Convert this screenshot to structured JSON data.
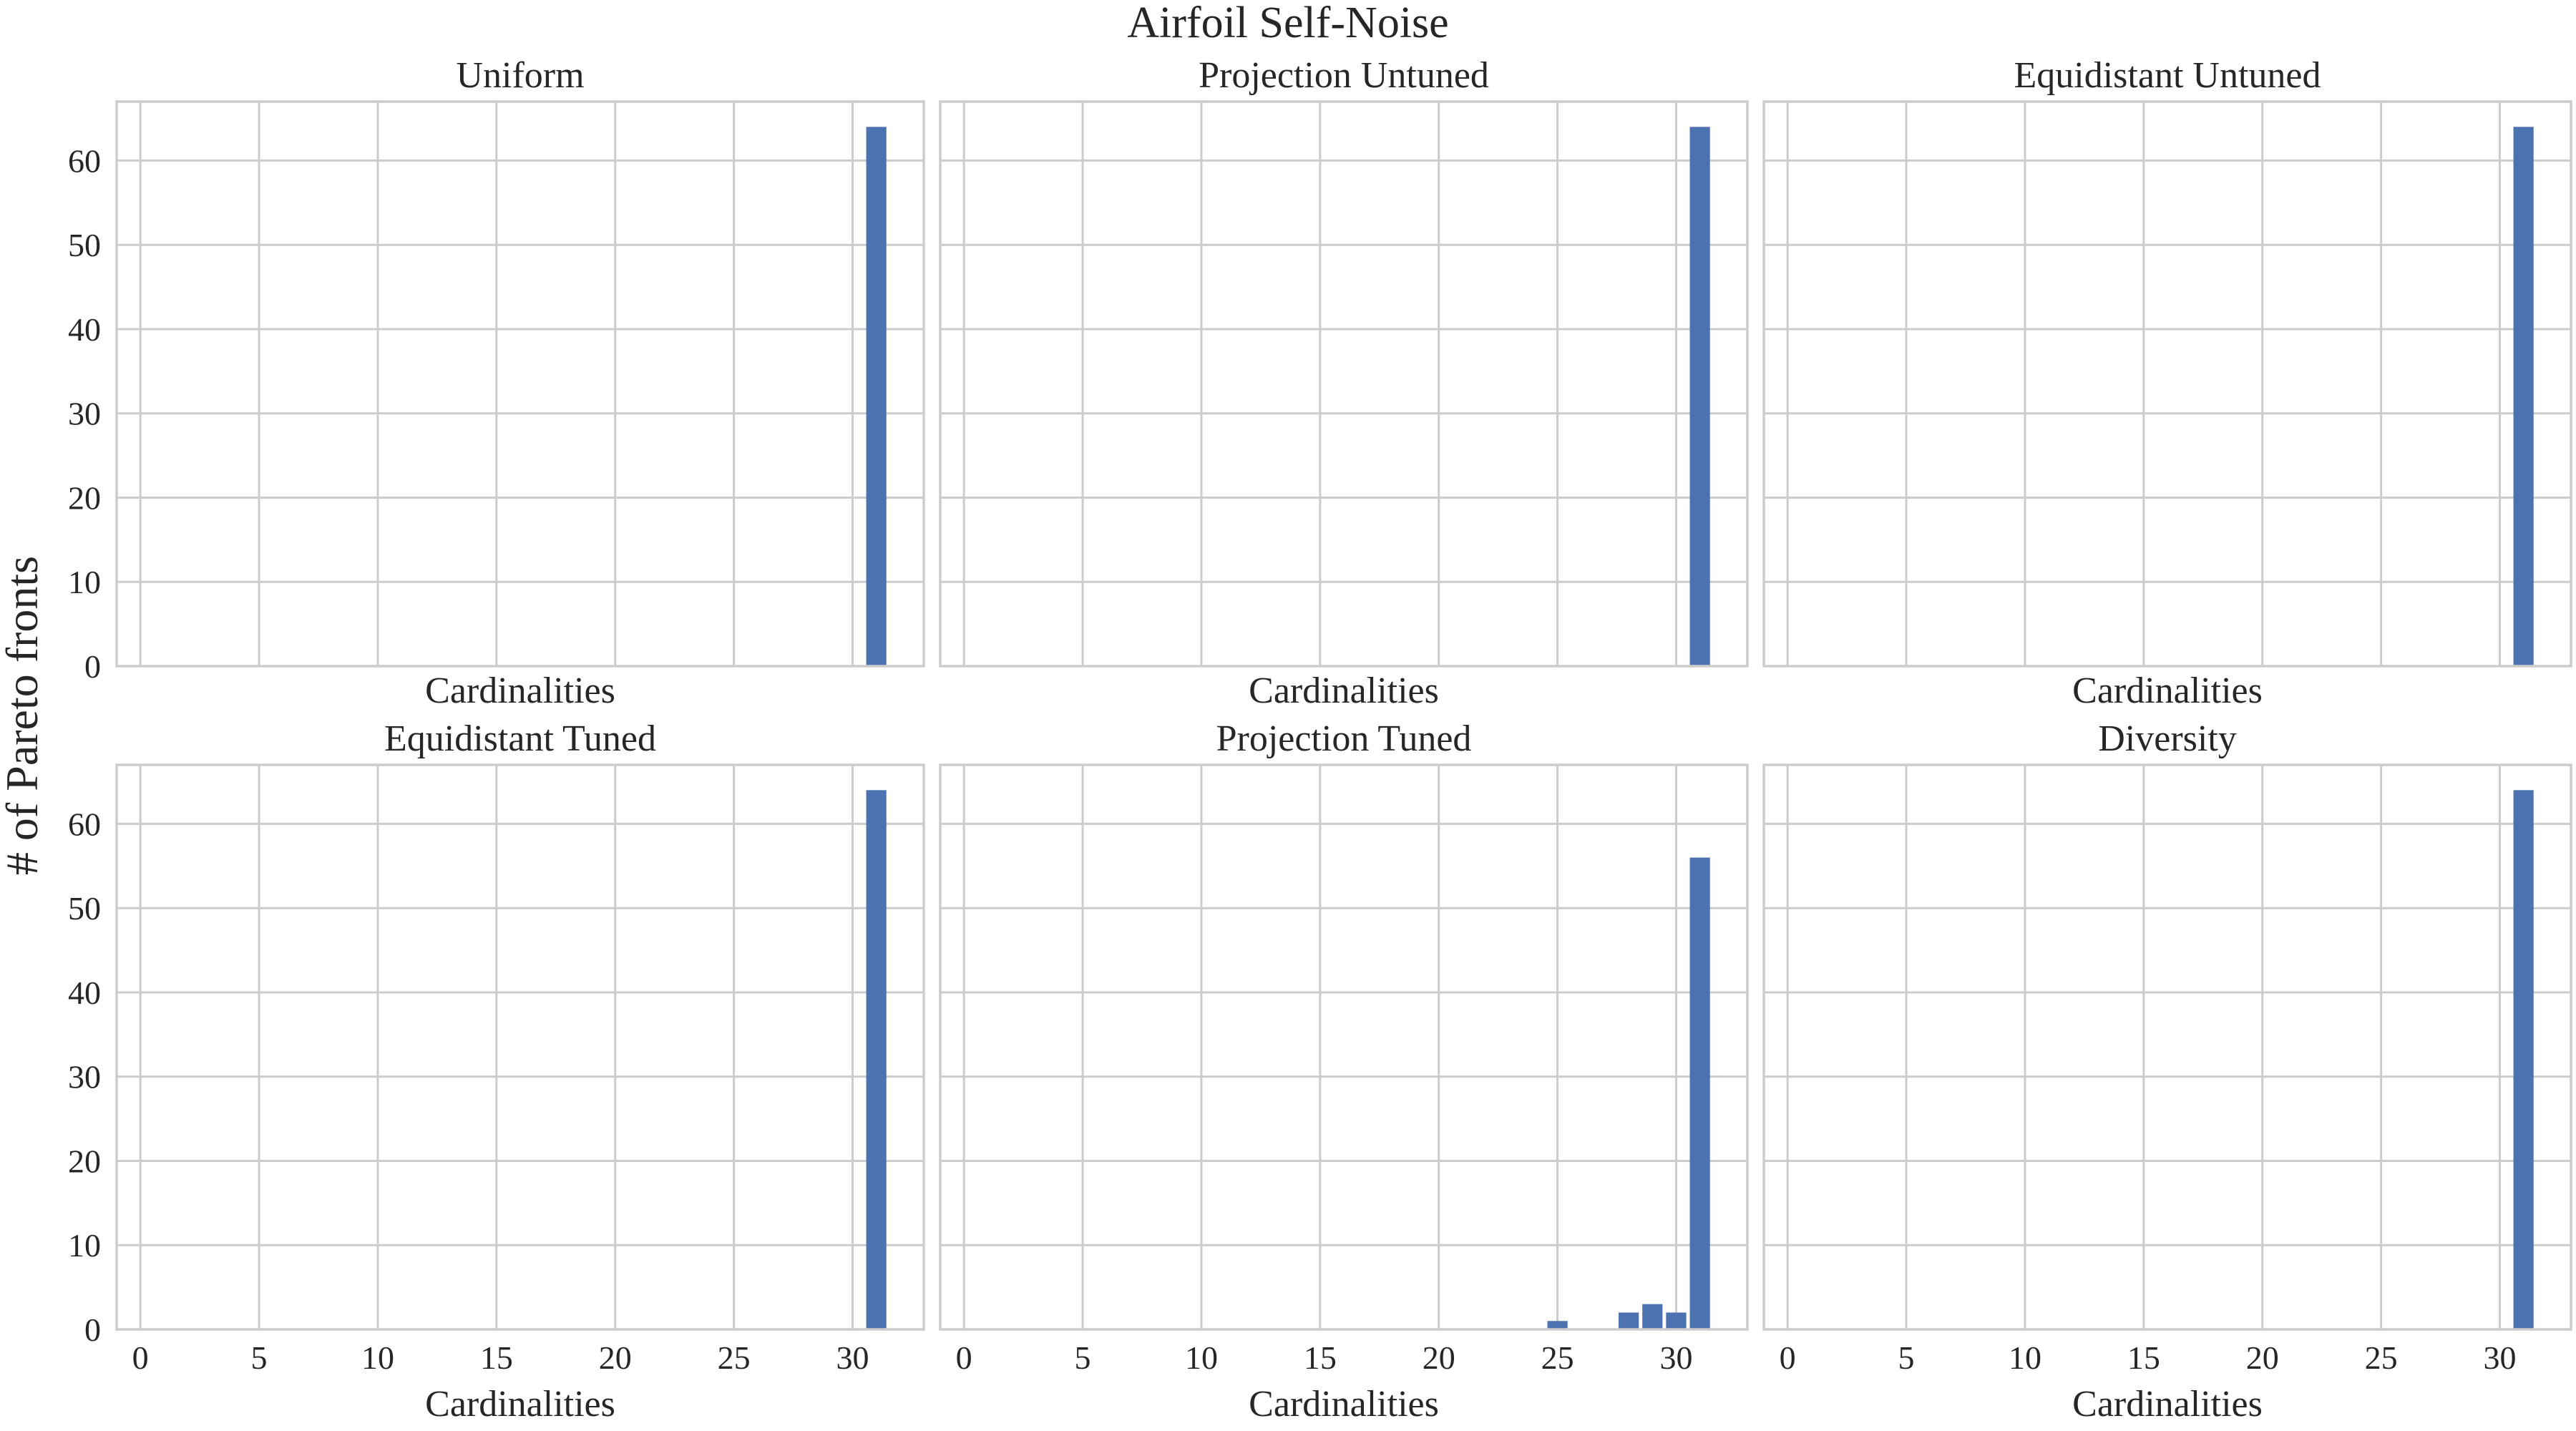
{
  "chart_data": {
    "title": "Airfoil Self-Noise",
    "ylabel": "# of Pareto fronts",
    "layout": "2 rows x 3 columns, shared axes",
    "x_ticks": [
      0,
      5,
      10,
      15,
      20,
      25,
      30
    ],
    "y_ticks": [
      0,
      10,
      20,
      30,
      40,
      50,
      60
    ],
    "xlim": [
      -1,
      33
    ],
    "ylim": [
      0,
      67
    ],
    "grid": true,
    "bar_color": "#4c72b0",
    "panels": [
      {
        "type": "bar",
        "title": "Uniform",
        "xlabel": "Cardinalities",
        "bars": [
          {
            "x": 31,
            "y": 64
          }
        ]
      },
      {
        "type": "bar",
        "title": "Projection Untuned",
        "xlabel": "Cardinalities",
        "bars": [
          {
            "x": 31,
            "y": 64
          }
        ]
      },
      {
        "type": "bar",
        "title": "Equidistant Untuned",
        "xlabel": "Cardinalities",
        "bars": [
          {
            "x": 31,
            "y": 64
          }
        ]
      },
      {
        "type": "bar",
        "title": "Equidistant Tuned",
        "xlabel": "Cardinalities",
        "bars": [
          {
            "x": 31,
            "y": 64
          }
        ]
      },
      {
        "type": "bar",
        "title": "Projection Tuned",
        "xlabel": "Cardinalities",
        "bars": [
          {
            "x": 25,
            "y": 1
          },
          {
            "x": 28,
            "y": 2
          },
          {
            "x": 29,
            "y": 3
          },
          {
            "x": 30,
            "y": 2
          },
          {
            "x": 31,
            "y": 56
          }
        ]
      },
      {
        "type": "bar",
        "title": "Diversity",
        "xlabel": "Cardinalities",
        "bars": [
          {
            "x": 31,
            "y": 64
          }
        ]
      }
    ]
  }
}
